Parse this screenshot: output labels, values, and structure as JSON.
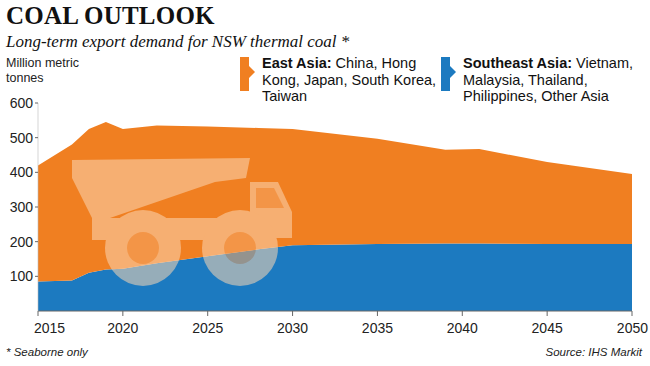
{
  "chart_data": {
    "type": "area",
    "stacked": true,
    "title": "COAL OUTLOOK",
    "subtitle": "Long-term export demand for NSW thermal coal *",
    "y_label": "Million metric tonnes",
    "footnote": "* Seaborne only",
    "source": "Source: IHS Markit",
    "x": [
      2015,
      2017,
      2018,
      2019,
      2020,
      2022,
      2025,
      2028,
      2030,
      2035,
      2039,
      2041,
      2045,
      2050
    ],
    "series": [
      {
        "name": "Southeast Asia: Vietnam, Malaysia, Thailand, Philippines, Other Asia",
        "color": "#1c7ac0",
        "values": [
          85,
          88,
          110,
          120,
          122,
          138,
          158,
          178,
          190,
          193,
          195,
          195,
          193,
          193
        ]
      },
      {
        "name": "East Asia: China, Hong Kong, Japan, South Korea, Taiwan",
        "color": "#f07f21",
        "values": [
          335,
          392,
          415,
          425,
          403,
          397,
          374,
          350,
          335,
          304,
          270,
          272,
          237,
          202
        ]
      }
    ],
    "xlim": [
      2015,
      2050
    ],
    "xticks": [
      2015,
      2020,
      2025,
      2030,
      2035,
      2040,
      2045,
      2050
    ],
    "ylim": [
      0,
      600
    ],
    "yticks": [
      100,
      200,
      300,
      400,
      500,
      600
    ],
    "grid": false
  }
}
